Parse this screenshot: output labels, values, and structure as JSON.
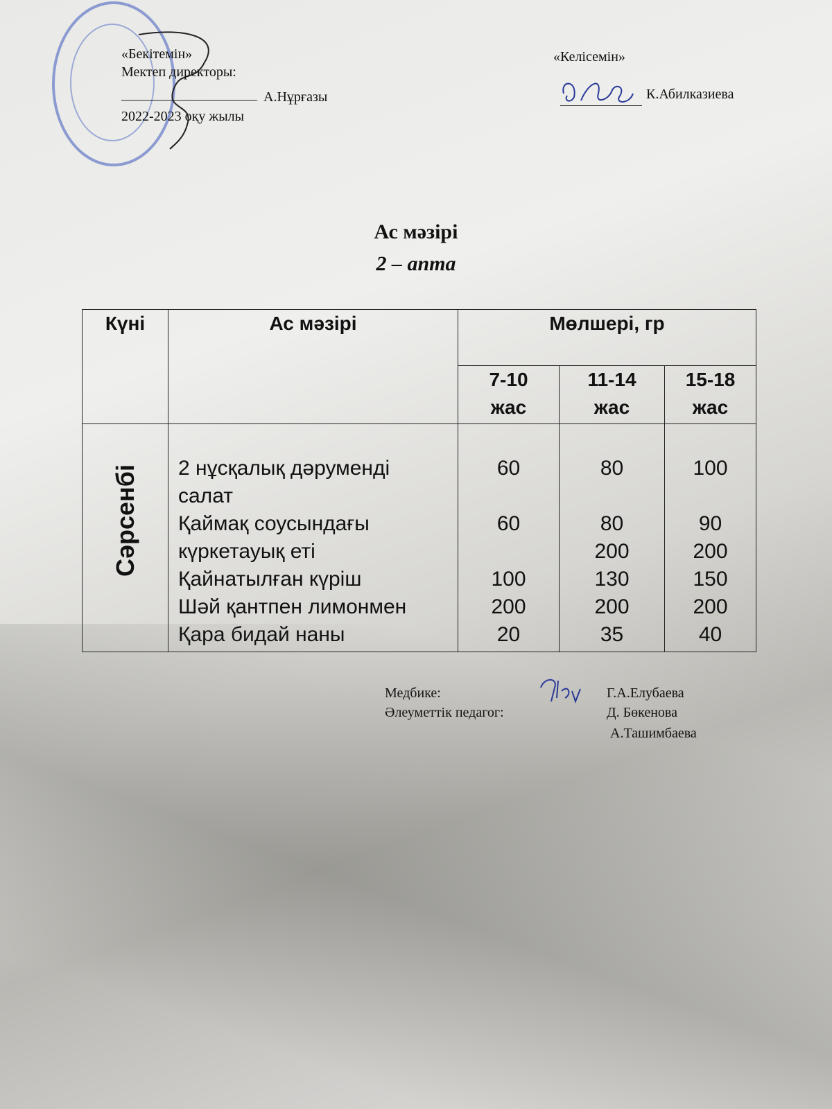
{
  "approval": {
    "label": "«Бекітемін»",
    "role": "Мектеп директоры:",
    "name": "А.Нұрғазы",
    "year": "2022-2023 оқу жылы"
  },
  "agreement": {
    "label": "«Келісемін»",
    "name": "К.Абилказиева"
  },
  "title": "Ас мәзірі",
  "subtitle": "2 – апта",
  "table": {
    "headers": {
      "day": "Күні",
      "menu": "Ас мәзірі",
      "amount": "Мөлшері, гр",
      "age_groups": [
        [
          "7-10",
          "жас"
        ],
        [
          "11-14",
          "жас"
        ],
        [
          "15-18",
          "жас"
        ]
      ]
    },
    "day": "Сәрсенбі",
    "lines": [
      {
        "item": "2 нұсқалық дәрумендi",
        "v": [
          "60",
          "80",
          "100"
        ]
      },
      {
        "item": "салат",
        "v": [
          "",
          "",
          ""
        ]
      },
      {
        "item": "Қаймақ соусындағы",
        "v": [
          "60",
          "80",
          "90"
        ]
      },
      {
        "item": "күркетауық еті",
        "v": [
          "",
          "200",
          "200"
        ]
      },
      {
        "item": "Қайнатылған күріш",
        "v": [
          "100",
          "130",
          "150"
        ]
      },
      {
        "item": "Шәй қантпен лимонмен",
        "v": [
          "200",
          "200",
          "200"
        ]
      },
      {
        "item": "Қара бидай наны",
        "v": [
          "20",
          "35",
          "40"
        ]
      }
    ]
  },
  "signatures": [
    {
      "role": "Медбике:",
      "name": "Г.А.Елубаева"
    },
    {
      "role": "Әлеуметтік педагог:",
      "name": "Д. Бөкенова"
    },
    {
      "role": "",
      "name": "А.Ташимбаева"
    }
  ],
  "colors": {
    "ink": "#111111",
    "stamp": "#3c5abe",
    "signature": "#2a3a9a"
  }
}
